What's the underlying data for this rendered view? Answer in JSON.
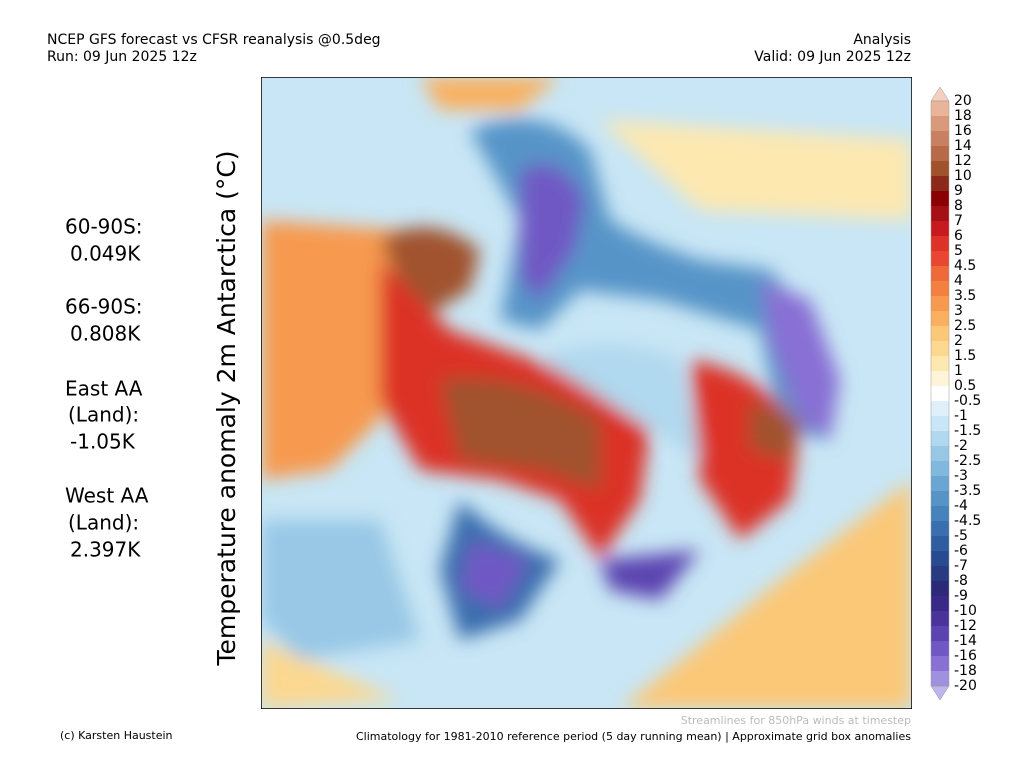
{
  "header": {
    "title": "NCEP GFS forecast vs CFSR reanalysis @0.5deg",
    "run": "Run: 09 Jun 2025 12z",
    "mode": "Analysis",
    "valid": "Valid: 09 Jun 2025 12z"
  },
  "y_label": "Temperature anomaly 2m Antarctica (°C)",
  "stats": [
    "60-90S:",
    "0.049K",
    "66-90S:",
    "0.808K",
    "East AA",
    "(Land):",
    "-1.05K",
    "West AA",
    "(Land):",
    "2.397K"
  ],
  "colorbar": {
    "labels": [
      20,
      18,
      16,
      14,
      12,
      10,
      9,
      8,
      7,
      6,
      5,
      4.5,
      4,
      3.5,
      3,
      2.5,
      2,
      1.5,
      1,
      0.5,
      -0.5,
      -1,
      -1.5,
      -2,
      -2.5,
      -3,
      -3.5,
      -4,
      -4.5,
      -5,
      -6,
      -7,
      -8,
      -9,
      -10,
      -12,
      -14,
      -16,
      -18,
      -20
    ],
    "colors": [
      "#f5d0c0",
      "#e8b49a",
      "#d99a7c",
      "#c98060",
      "#b86a48",
      "#a0522d",
      "#8b2a1a",
      "#8b0000",
      "#a50f15",
      "#c8191e",
      "#dc3228",
      "#e84832",
      "#ef6a3a",
      "#f38040",
      "#f79a50",
      "#f9b060",
      "#fbc878",
      "#fcd890",
      "#fde8b0",
      "#fef4d8",
      "#ffffff",
      "#e0f0fa",
      "#c8e6f5",
      "#b0d8ee",
      "#98c8e6",
      "#80b8de",
      "#6aa6d4",
      "#5694c8",
      "#4682bc",
      "#3a6eae",
      "#305ca0",
      "#284a90",
      "#283a80",
      "#2c2a78",
      "#3a2a88",
      "#4a349c",
      "#5c44b0",
      "#7058c4",
      "#8870d4",
      "#a090e0",
      "#c0b4ec"
    ]
  },
  "footer": {
    "credit": "(c) Karsten Haustein",
    "streamlines": "Streamlines for 850hPa winds at timestep",
    "note": "Climatology for 1981-2010 reference period (5 day running mean) | Approximate grid box anomalies"
  }
}
